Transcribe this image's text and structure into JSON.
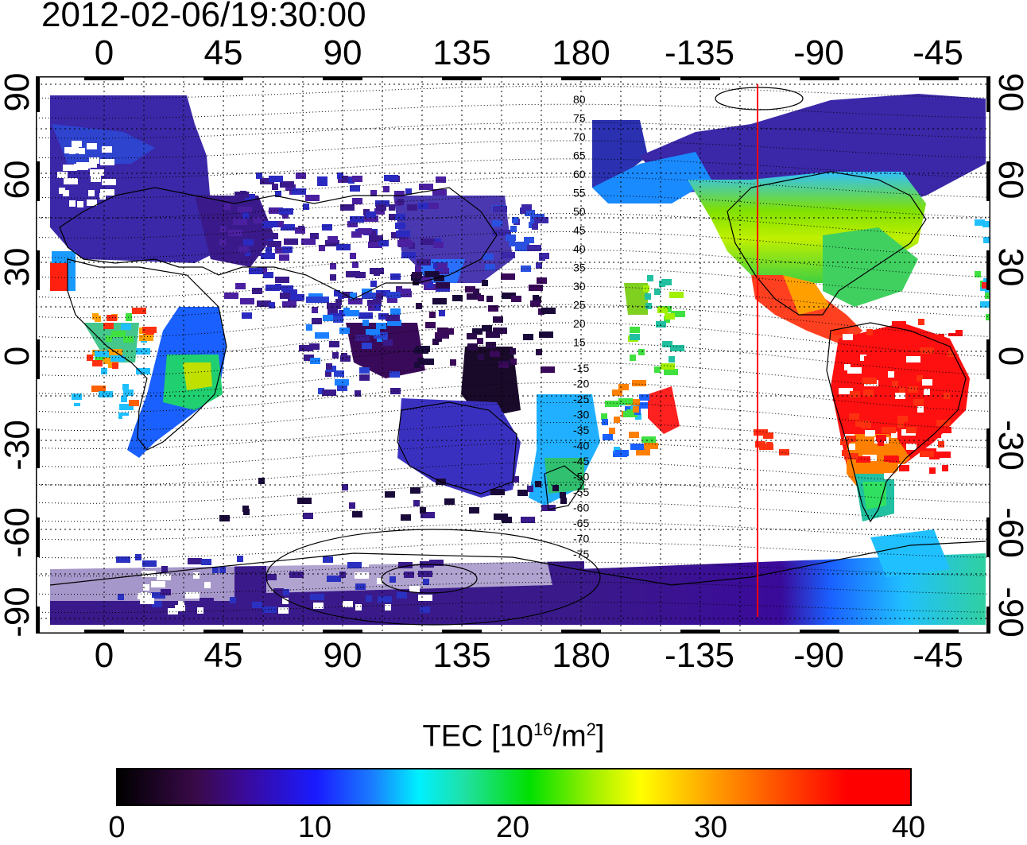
{
  "timestamp": "2012-02-06/19:30:00",
  "map": {
    "lon_ticks": [
      "0",
      "45",
      "90",
      "135",
      "180",
      "-135",
      "-90",
      "-45"
    ],
    "lat_ticks_left": [
      "90",
      "60",
      "30",
      "0",
      "-30",
      "-60",
      "-90"
    ],
    "lat_ticks_right": [
      "90",
      "60",
      "30",
      "0",
      "-30",
      "-60",
      "-90"
    ],
    "contour_labels_north": [
      "80",
      "75",
      "70",
      "65",
      "60",
      "55",
      "50",
      "45",
      "40",
      "35",
      "30",
      "25",
      "20",
      "15"
    ],
    "contour_labels_south": [
      "-15",
      "-20",
      "-25",
      "-30",
      "-35",
      "-40",
      "-45",
      "-50",
      "-55",
      "-60",
      "-65",
      "-70",
      "-75"
    ],
    "terminator_color": "#ff0000"
  },
  "colorbar": {
    "title": "TEC  [10",
    "title_sup": "16",
    "title_mid": "/m",
    "title_sup2": "2",
    "title_end": "]",
    "ticks": [
      "0",
      "10",
      "20",
      "30",
      "40"
    ],
    "min": 0,
    "max": 40
  }
}
